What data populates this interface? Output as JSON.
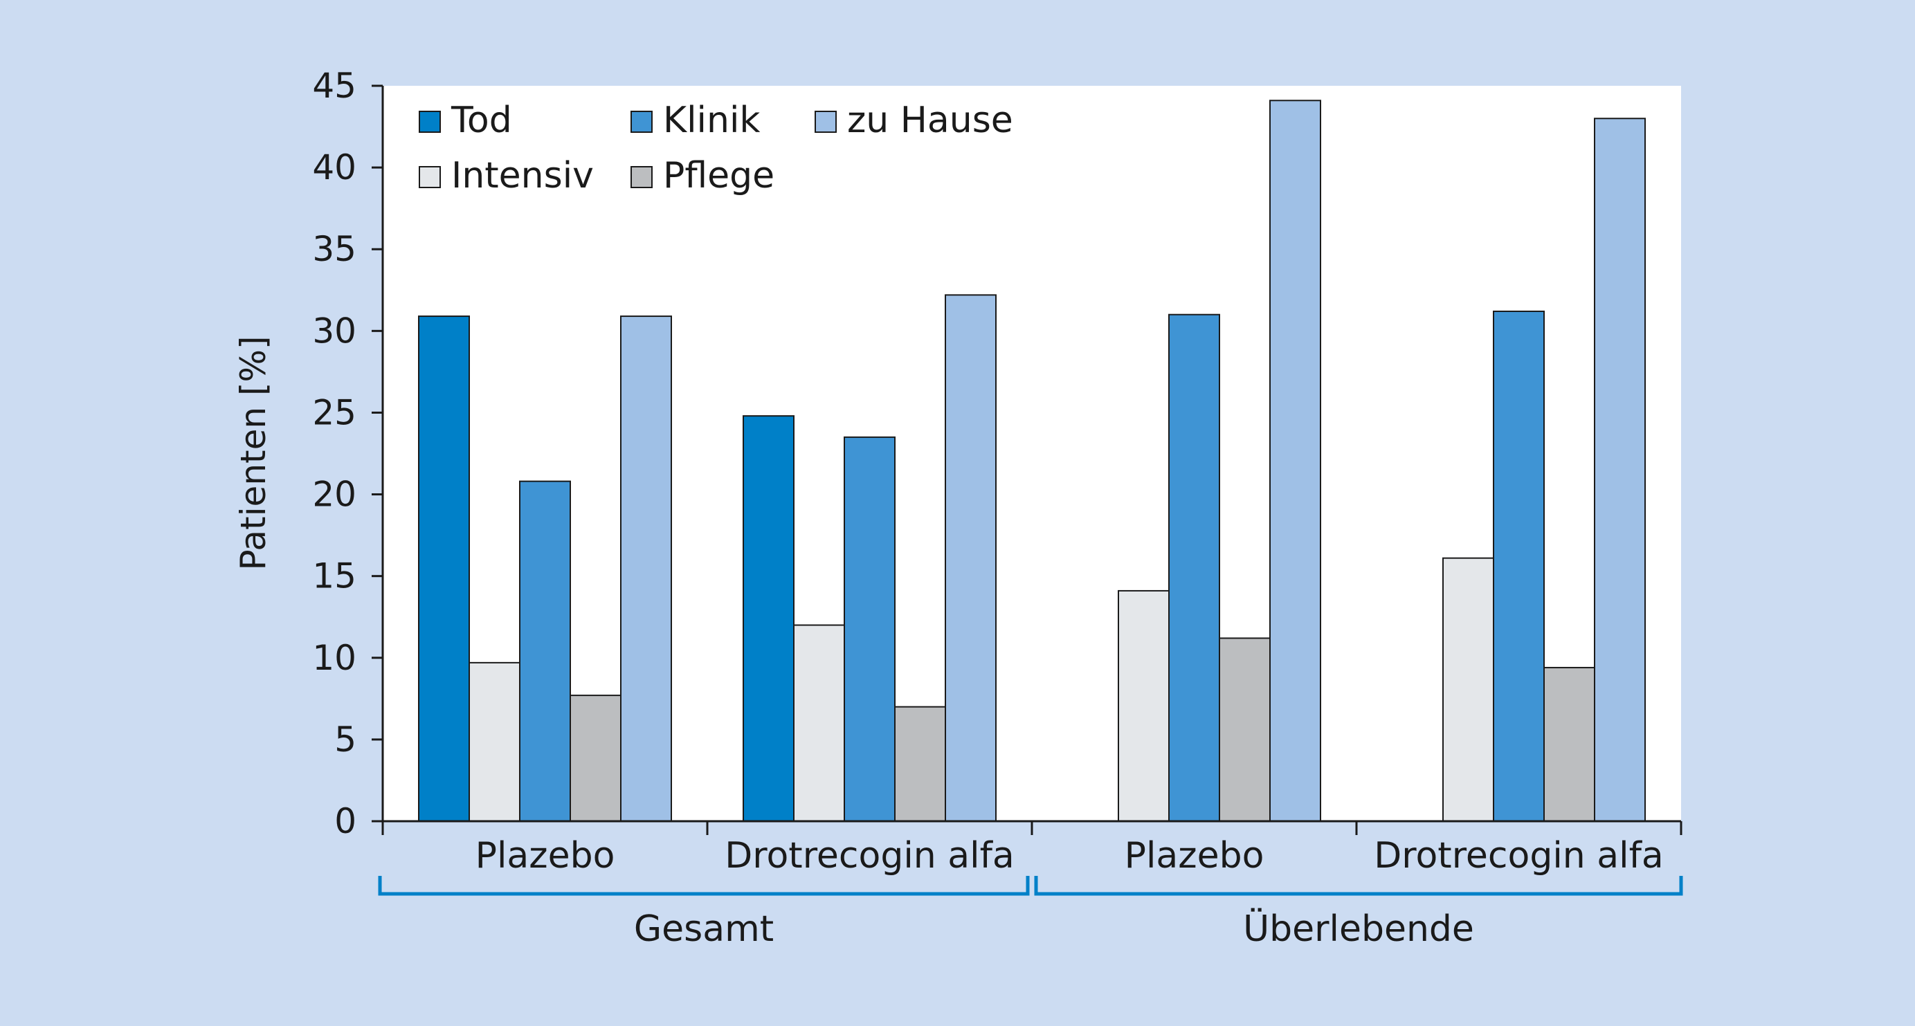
{
  "chart_data": {
    "type": "bar",
    "ylabel": "Patienten [%]",
    "ylim": [
      0,
      45
    ],
    "yticks": [
      "0",
      "5",
      "10",
      "15",
      "20",
      "25",
      "30",
      "35",
      "40",
      "45"
    ],
    "grid": false,
    "legend_position": "top-left",
    "categories": [
      "Plazebo",
      "Drotrecogin alfa",
      "Plazebo",
      "Drotrecogin alfa"
    ],
    "groups": [
      {
        "label": "Gesamt",
        "categories": [
          0,
          1
        ]
      },
      {
        "label": "Überlebende",
        "categories": [
          2,
          3
        ]
      }
    ],
    "series": [
      {
        "name": "Tod",
        "color": "#0080c8",
        "values": [
          30.9,
          24.8,
          null,
          null
        ]
      },
      {
        "name": "Intensiv",
        "color": "#e4e7ea",
        "values": [
          9.7,
          12.0,
          14.1,
          16.1
        ]
      },
      {
        "name": "Klinik",
        "color": "#3f94d4",
        "values": [
          20.8,
          23.5,
          31.0,
          31.2
        ]
      },
      {
        "name": "Pflege",
        "color": "#bcbec0",
        "values": [
          7.7,
          7.0,
          11.2,
          9.4
        ]
      },
      {
        "name": "zu Hause",
        "color": "#9fc0e6",
        "values": [
          30.9,
          32.2,
          44.1,
          43.0
        ]
      }
    ],
    "legend_order": [
      "Tod",
      "Klinik",
      "zu Hause",
      "Intensiv",
      "Pflege"
    ]
  }
}
